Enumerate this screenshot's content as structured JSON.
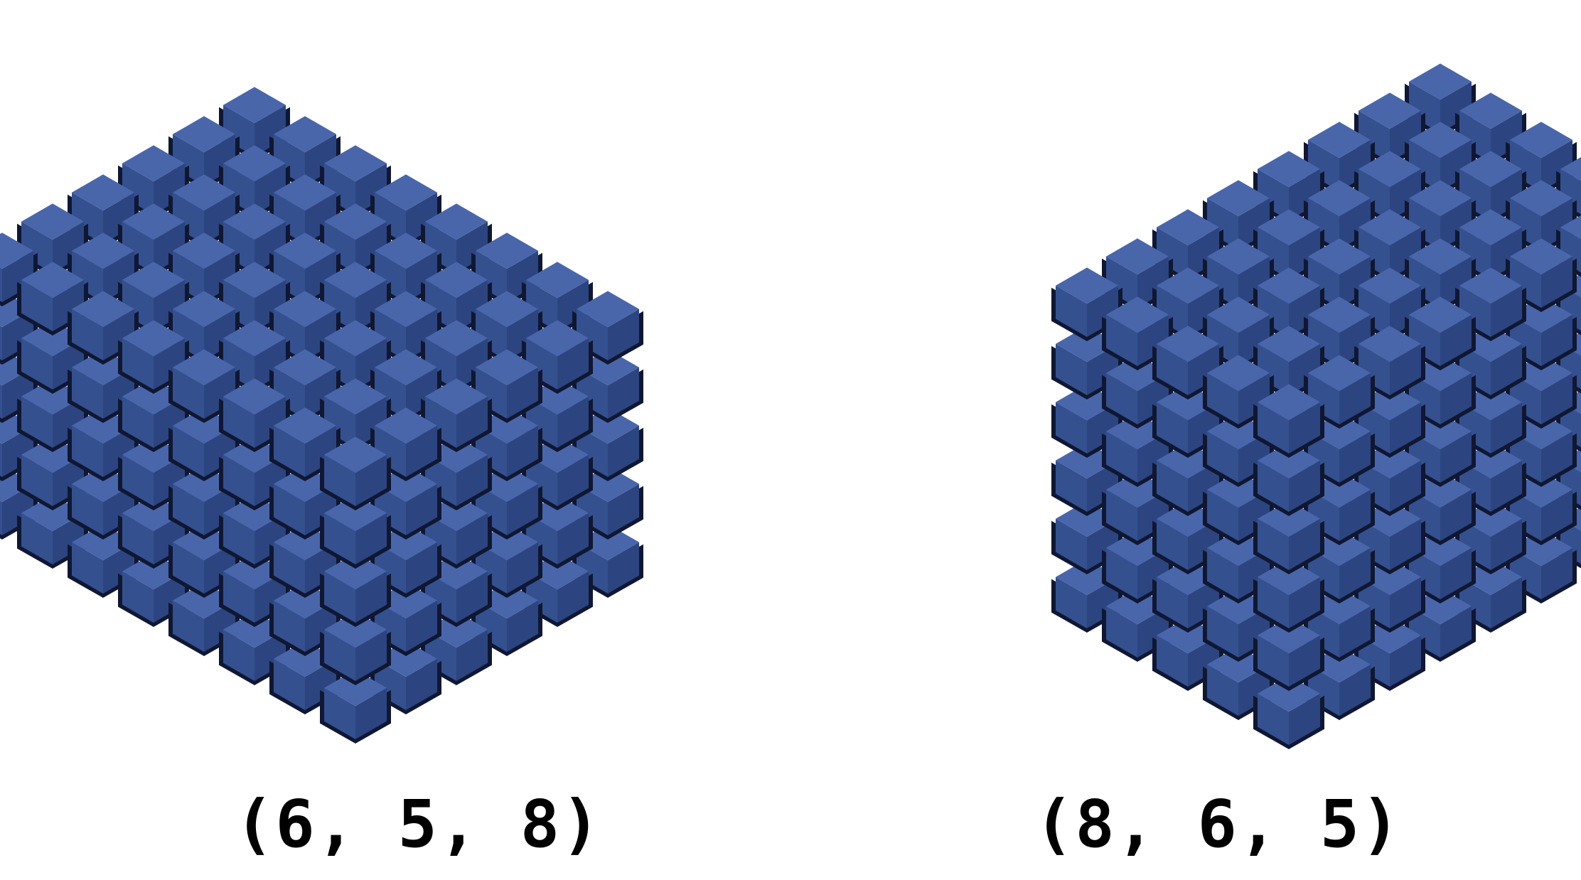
{
  "figure": {
    "background": "#ffffff",
    "cube_color": "#3d5aa0",
    "shade_top": "#4a66ab",
    "shade_left": "#34508f",
    "shade_right": "#2c4580",
    "shade_gap": "#0f1733"
  },
  "arrays": [
    {
      "label": "(6, 5, 8)",
      "dims": {
        "a": 6,
        "b": 5,
        "c": 8
      }
    },
    {
      "label": "(8, 6, 5)",
      "dims": {
        "a": 8,
        "b": 6,
        "c": 5
      }
    }
  ]
}
